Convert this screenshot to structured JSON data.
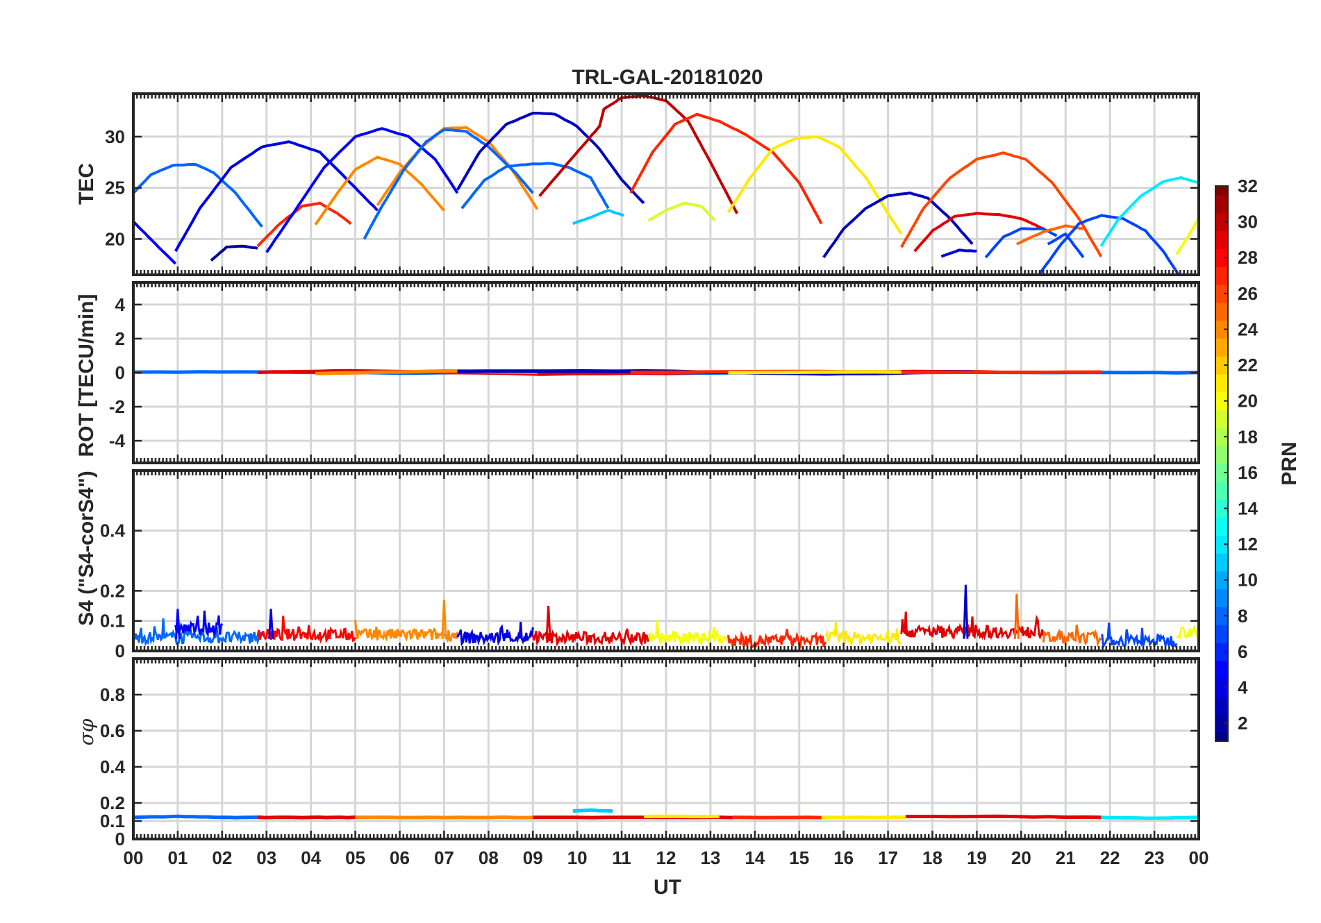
{
  "chart_data": [
    {
      "type": "line",
      "title": "TRL-GAL-20181020",
      "ylabel": "TEC",
      "xlabel": "",
      "xlim": [
        0,
        24
      ],
      "ylim": [
        16.5,
        34.2
      ],
      "yticks": [
        20,
        25,
        30
      ],
      "series": [
        {
          "prn": 8,
          "x": [
            0,
            0.4,
            0.9,
            1.4,
            1.8,
            2.3,
            2.9
          ],
          "y": [
            24.5,
            26.3,
            27.2,
            27.3,
            26.5,
            24.5,
            21.2
          ]
        },
        {
          "prn": 5,
          "x": [
            0,
            0.5,
            0.95
          ],
          "y": [
            21.7,
            19.5,
            17.6
          ]
        },
        {
          "prn": 4,
          "x": [
            0.95,
            1.5,
            2.2,
            2.9,
            3.5,
            4.2,
            5.0,
            5.5
          ],
          "y": [
            18.8,
            23.0,
            27.0,
            29.0,
            29.5,
            28.5,
            25.0,
            22.8
          ]
        },
        {
          "prn": 2,
          "x": [
            1.75,
            2.1,
            2.5,
            2.8
          ],
          "y": [
            17.9,
            19.2,
            19.3,
            19.1
          ]
        },
        {
          "prn": 27,
          "x": [
            2.8,
            3.3,
            3.8,
            4.2,
            4.6,
            4.9
          ],
          "y": [
            19.3,
            21.5,
            23.2,
            23.5,
            22.5,
            21.5
          ]
        },
        {
          "prn": 5,
          "x": [
            3.0,
            3.6,
            4.3,
            5.0,
            5.6,
            6.2,
            6.8,
            7.3
          ],
          "y": [
            18.7,
            22.5,
            27.0,
            30.0,
            30.8,
            30.0,
            27.8,
            24.5
          ]
        },
        {
          "prn": 24,
          "x": [
            4.1,
            4.6,
            5.0,
            5.5,
            6.0,
            6.5,
            7.0
          ],
          "y": [
            21.4,
            24.5,
            26.8,
            28.0,
            27.3,
            25.3,
            22.8
          ]
        },
        {
          "prn": 24,
          "x": [
            5.5,
            6.0,
            6.5,
            7.0,
            7.5,
            8.0,
            8.5,
            9.1
          ],
          "y": [
            23.3,
            26.5,
            29.0,
            30.8,
            30.9,
            29.5,
            27.0,
            22.9
          ]
        },
        {
          "prn": 8,
          "x": [
            5.2,
            5.6,
            6.1,
            6.6,
            7.0,
            7.5,
            8.0,
            8.6,
            9.0
          ],
          "y": [
            20.0,
            23.2,
            26.8,
            29.5,
            30.7,
            30.5,
            29.0,
            26.5,
            24.5
          ]
        },
        {
          "prn": 8,
          "x": [
            7.4,
            7.9,
            8.4,
            8.9,
            9.4,
            9.8,
            10.3,
            10.7
          ],
          "y": [
            23.0,
            25.7,
            27.1,
            27.3,
            27.4,
            27.0,
            26.0,
            23.0
          ]
        },
        {
          "prn": 3,
          "x": [
            7.3,
            7.8,
            8.4,
            9.0,
            9.5,
            10.0,
            10.5,
            11.0,
            11.5
          ],
          "y": [
            24.8,
            28.5,
            31.2,
            32.3,
            32.2,
            31.0,
            28.8,
            25.8,
            23.5
          ]
        },
        {
          "prn": 11,
          "x": [
            9.9,
            10.3,
            10.7,
            11.05
          ],
          "y": [
            21.5,
            22.1,
            22.8,
            22.3
          ]
        },
        {
          "prn": 30,
          "x": [
            9.15,
            9.7,
            10.2,
            10.5,
            10.6,
            11.0,
            11.5,
            12.0,
            12.5,
            13.0,
            13.6
          ],
          "y": [
            24.2,
            27.0,
            29.5,
            31.0,
            32.7,
            33.8,
            34.0,
            33.5,
            31.5,
            27.5,
            22.5
          ]
        },
        {
          "prn": 19,
          "x": [
            11.6,
            12.0,
            12.4,
            12.8,
            13.1
          ],
          "y": [
            21.8,
            22.8,
            23.5,
            23.2,
            21.8
          ]
        },
        {
          "prn": 27,
          "x": [
            11.2,
            11.7,
            12.2,
            12.7,
            13.2,
            13.8,
            14.4,
            15.0,
            15.5
          ],
          "y": [
            24.5,
            28.5,
            31.2,
            32.2,
            31.5,
            30.2,
            28.5,
            25.5,
            21.5
          ]
        },
        {
          "prn": 21,
          "x": [
            13.4,
            13.9,
            14.4,
            14.9,
            15.4,
            15.9,
            16.5,
            17.0,
            17.3
          ],
          "y": [
            22.6,
            26.0,
            28.8,
            29.8,
            30.0,
            29.0,
            26.0,
            22.5,
            20.5
          ]
        },
        {
          "prn": 3,
          "x": [
            15.55,
            16.0,
            16.5,
            17.0,
            17.5,
            17.9,
            18.4,
            18.9
          ],
          "y": [
            18.2,
            21.0,
            23.0,
            24.2,
            24.5,
            24.0,
            22.0,
            19.5
          ]
        },
        {
          "prn": 26,
          "x": [
            17.3,
            17.8,
            18.4,
            19.0,
            19.6,
            20.1,
            20.7,
            21.3,
            21.8
          ],
          "y": [
            19.2,
            23.0,
            26.0,
            27.8,
            28.4,
            27.8,
            25.5,
            22.0,
            18.3
          ]
        },
        {
          "prn": 29,
          "x": [
            17.6,
            18.0,
            18.5,
            19.0,
            19.5,
            20.0,
            20.5
          ],
          "y": [
            18.8,
            20.8,
            22.2,
            22.5,
            22.4,
            22.0,
            21.0
          ]
        },
        {
          "prn": 4,
          "x": [
            18.2,
            18.6,
            19.0
          ],
          "y": [
            18.3,
            18.9,
            18.8
          ]
        },
        {
          "prn": 7,
          "x": [
            19.2,
            19.6,
            20.0,
            20.5,
            20.8
          ],
          "y": [
            18.2,
            20.2,
            21.0,
            21.0,
            20.3
          ]
        },
        {
          "prn": 25,
          "x": [
            19.9,
            20.5,
            21.0,
            21.4
          ],
          "y": [
            19.5,
            20.7,
            21.3,
            21.0
          ]
        },
        {
          "prn": 7,
          "x": [
            20.4,
            20.9,
            21.3,
            21.8,
            22.3,
            22.8,
            23.2,
            23.55
          ],
          "y": [
            16.5,
            19.5,
            21.5,
            22.3,
            22.0,
            20.8,
            18.8,
            16.5
          ]
        },
        {
          "prn": 7,
          "x": [
            20.6,
            21.0,
            21.4
          ],
          "y": [
            19.5,
            20.5,
            18.2
          ]
        },
        {
          "prn": 12,
          "x": [
            21.8,
            22.2,
            22.7,
            23.2,
            23.6,
            24.0
          ],
          "y": [
            19.3,
            22.0,
            24.2,
            25.6,
            26.0,
            25.5
          ]
        },
        {
          "prn": 20,
          "x": [
            23.5,
            23.75,
            24.0
          ],
          "y": [
            18.5,
            20.2,
            22.0
          ]
        }
      ]
    },
    {
      "type": "line",
      "ylabel": "ROT [TECU/min]",
      "xlim": [
        0,
        24
      ],
      "ylim": [
        -5.3,
        5.3
      ],
      "yticks": [
        -4,
        -2,
        0,
        2,
        4
      ],
      "series": [
        {
          "prn": 8,
          "x": [
            0,
            3,
            6,
            9,
            12,
            15,
            18,
            21,
            24
          ],
          "y": [
            0.03,
            0.05,
            -0.02,
            0.06,
            -0.04,
            0.02,
            0.05,
            0.01,
            0.0
          ]
        },
        {
          "prn": 29,
          "x": [
            2.8,
            4.9,
            9.2,
            13.6,
            17.6,
            20.5
          ],
          "y": [
            0.02,
            0.12,
            -0.08,
            0.03,
            0.06,
            0.02
          ]
        },
        {
          "prn": 24,
          "x": [
            4.1,
            7.0,
            9.1
          ],
          "y": [
            -0.05,
            0.1,
            0.02
          ]
        },
        {
          "prn": 3,
          "x": [
            7.3,
            11.5,
            15.6,
            18.9
          ],
          "y": [
            0.08,
            0.1,
            -0.08,
            0.05
          ]
        },
        {
          "prn": 27,
          "x": [
            11.2,
            15.5,
            17.3,
            21.8
          ],
          "y": [
            0.02,
            0.08,
            0.0,
            0.03
          ]
        },
        {
          "prn": 21,
          "x": [
            13.4,
            17.3
          ],
          "y": [
            0.0,
            0.05
          ]
        }
      ]
    },
    {
      "type": "line",
      "ylabel": "S4 (\"S4-corS4\")",
      "xlim": [
        0,
        24
      ],
      "ylim": [
        0,
        0.6
      ],
      "yticks": [
        0,
        0.1,
        0.2,
        0.4
      ],
      "peaks": [
        {
          "x": 7.0,
          "y": 0.17,
          "prn": 24
        },
        {
          "x": 18.75,
          "y": 0.22,
          "prn": 3
        },
        {
          "x": 19.9,
          "y": 0.19,
          "prn": 25
        },
        {
          "x": 9.35,
          "y": 0.15,
          "prn": 29
        },
        {
          "x": 1.0,
          "y": 0.14,
          "prn": 5
        },
        {
          "x": 3.1,
          "y": 0.14,
          "prn": 4
        }
      ],
      "segments": [
        {
          "prn": 8,
          "x0": 0.0,
          "x1": 2.9,
          "base": 0.04
        },
        {
          "prn": 5,
          "x0": 0.95,
          "x1": 2.0,
          "base": 0.07
        },
        {
          "prn": 28,
          "x0": 2.8,
          "x1": 5.0,
          "base": 0.05
        },
        {
          "prn": 24,
          "x0": 5.0,
          "x1": 7.3,
          "base": 0.05
        },
        {
          "prn": 4,
          "x0": 7.3,
          "x1": 9.0,
          "base": 0.04
        },
        {
          "prn": 29,
          "x0": 9.0,
          "x1": 11.6,
          "base": 0.04
        },
        {
          "prn": 20,
          "x0": 11.6,
          "x1": 13.4,
          "base": 0.04
        },
        {
          "prn": 27,
          "x0": 13.4,
          "x1": 15.6,
          "base": 0.03
        },
        {
          "prn": 21,
          "x0": 15.6,
          "x1": 17.3,
          "base": 0.04
        },
        {
          "prn": 29,
          "x0": 17.3,
          "x1": 20.5,
          "base": 0.06
        },
        {
          "prn": 25,
          "x0": 20.5,
          "x1": 21.8,
          "base": 0.04
        },
        {
          "prn": 7,
          "x0": 21.8,
          "x1": 23.5,
          "base": 0.03
        },
        {
          "prn": 20,
          "x0": 23.5,
          "x1": 24.0,
          "base": 0.06
        }
      ]
    },
    {
      "type": "line",
      "ylabel": "σφ",
      "xlabel": "UT",
      "xlim": [
        0,
        24
      ],
      "ylim": [
        0,
        1.0
      ],
      "yticks": [
        0,
        0.1,
        0.2,
        0.4,
        0.6,
        0.8
      ],
      "series": [
        {
          "prn": 8,
          "x": [
            0,
            1,
            2,
            2.9
          ],
          "y": [
            0.12,
            0.125,
            0.12,
            0.12
          ]
        },
        {
          "prn": 29,
          "x": [
            2.8,
            4,
            5
          ],
          "y": [
            0.12,
            0.12,
            0.12
          ]
        },
        {
          "prn": 24,
          "x": [
            5,
            7,
            9
          ],
          "y": [
            0.12,
            0.12,
            0.12
          ]
        },
        {
          "prn": 29,
          "x": [
            9,
            11,
            13.5
          ],
          "y": [
            0.12,
            0.12,
            0.12
          ]
        },
        {
          "prn": 11,
          "x": [
            9.9,
            10.3,
            10.8
          ],
          "y": [
            0.155,
            0.16,
            0.155
          ]
        },
        {
          "prn": 21,
          "x": [
            11.5,
            13.2
          ],
          "y": [
            0.125,
            0.125
          ]
        },
        {
          "prn": 27,
          "x": [
            13.5,
            15.5
          ],
          "y": [
            0.12,
            0.12
          ]
        },
        {
          "prn": 21,
          "x": [
            15.5,
            17.4
          ],
          "y": [
            0.12,
            0.12
          ]
        },
        {
          "prn": 29,
          "x": [
            17.4,
            19.5,
            21.8
          ],
          "y": [
            0.125,
            0.125,
            0.12
          ]
        },
        {
          "prn": 12,
          "x": [
            21.8,
            23,
            24
          ],
          "y": [
            0.12,
            0.115,
            0.12
          ]
        }
      ]
    }
  ],
  "x_ticks": [
    "00",
    "01",
    "02",
    "03",
    "04",
    "05",
    "06",
    "07",
    "08",
    "09",
    "10",
    "11",
    "12",
    "13",
    "14",
    "15",
    "16",
    "17",
    "18",
    "19",
    "20",
    "21",
    "22",
    "23",
    "00"
  ],
  "colorbar": {
    "label": "PRN",
    "range": [
      1,
      32
    ],
    "ticks": [
      2,
      4,
      6,
      8,
      10,
      12,
      14,
      16,
      18,
      20,
      22,
      24,
      26,
      28,
      30,
      32
    ],
    "colormap": "jet"
  }
}
